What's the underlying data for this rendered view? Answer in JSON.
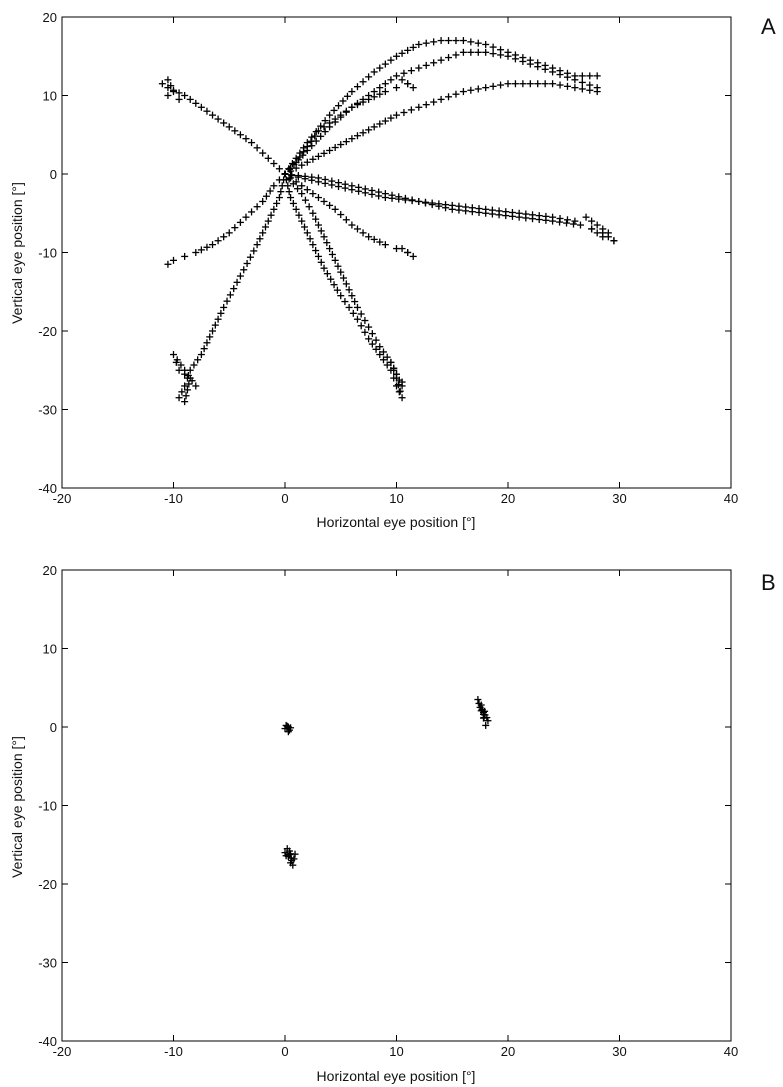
{
  "chart_data": [
    {
      "type": "scatter",
      "panel": "A",
      "xlabel": "Horizontal eye position [°]",
      "ylabel": "Vertical eye position [°]",
      "xlim": [
        -20,
        40
      ],
      "ylim": [
        -40,
        20
      ],
      "xticks": [
        -20,
        -10,
        0,
        10,
        20,
        30,
        40
      ],
      "yticks": [
        -40,
        -30,
        -20,
        -10,
        0,
        10,
        20
      ],
      "grid": false,
      "marker": "+",
      "series": [
        {
          "x": [
            0,
            -1.5,
            -3,
            -5,
            -7,
            -9,
            -10.5,
            -11,
            -10.5,
            -10,
            -9.5,
            -10.5
          ],
          "y": [
            0,
            2,
            4,
            6,
            8,
            10,
            11,
            11.5,
            12,
            10.5,
            9.5,
            10
          ]
        },
        {
          "x": [
            0,
            -1,
            -2,
            -3.5,
            -5,
            -6.5,
            -8,
            -9,
            -10,
            -10.5
          ],
          "y": [
            0,
            -1.5,
            -3.5,
            -5.5,
            -7.5,
            -9,
            -10,
            -10.5,
            -11,
            -11.5
          ]
        },
        {
          "x": [
            0,
            -0.5,
            -1.5,
            -2.5,
            -4,
            -5.5,
            -6.5,
            -7.5,
            -8.5,
            -9,
            -9.5,
            -9,
            -8.5,
            -9.5,
            -10,
            -8
          ],
          "y": [
            0,
            -3,
            -6,
            -9,
            -13,
            -17,
            -20,
            -23,
            -25,
            -27,
            -28.5,
            -29,
            -26,
            -25,
            -23,
            -27
          ]
        },
        {
          "x": [
            0,
            0.5,
            1.5,
            2.5,
            3.5,
            5,
            6.5,
            7.5,
            8.5,
            9.5,
            10,
            10.5,
            10,
            9.5,
            10.5
          ],
          "y": [
            0,
            -3,
            -6,
            -9,
            -12,
            -15.5,
            -18.5,
            -21,
            -23,
            -25,
            -27,
            -28.5,
            -26,
            -24,
            -27
          ]
        },
        {
          "x": [
            0,
            1.5,
            2.5,
            3.5,
            4.5,
            5.5,
            6.5,
            7.5,
            8.5,
            9.5,
            10,
            10.5
          ],
          "y": [
            0,
            -2.5,
            -5,
            -8,
            -11,
            -14,
            -17,
            -19.5,
            -22,
            -24,
            -25.5,
            -26.5
          ]
        },
        {
          "x": [
            0,
            1.5,
            3,
            4.5,
            6,
            7.5,
            9,
            10,
            11,
            11.5,
            10.5
          ],
          "y": [
            0,
            -1.5,
            -3,
            -4.5,
            -6.5,
            -8,
            -9,
            -9.5,
            -10,
            -10.5,
            -9.5
          ]
        },
        {
          "x": [
            0,
            3,
            6,
            9,
            12,
            15,
            18,
            21,
            24,
            26,
            27,
            28,
            29,
            29.5,
            28.5,
            27.5
          ],
          "y": [
            0,
            -0.5,
            -1.5,
            -2.5,
            -3.5,
            -4,
            -4.5,
            -5,
            -5.5,
            -6,
            -5.5,
            -6.5,
            -7.5,
            -8.5,
            -8,
            -7
          ]
        },
        {
          "x": [
            0,
            3,
            6,
            9,
            12,
            15,
            18,
            21,
            24,
            26.5,
            27.5,
            28.5,
            29,
            29.5
          ],
          "y": [
            0,
            -1,
            -2,
            -3,
            -3.5,
            -4.5,
            -5,
            -5.5,
            -6,
            -6.5,
            -7,
            -7.5,
            -8,
            -8.5
          ]
        },
        {
          "x": [
            0,
            1,
            2,
            3,
            4.5,
            6,
            7.5,
            9,
            10,
            11,
            11.5,
            10.5
          ],
          "y": [
            0,
            1.5,
            3.5,
            5.5,
            7,
            8.5,
            9.5,
            10.5,
            11,
            11.5,
            11,
            12
          ]
        },
        {
          "x": [
            0,
            2,
            4,
            6,
            8,
            10,
            12,
            14,
            16,
            18,
            20,
            22,
            24,
            26,
            28
          ],
          "y": [
            0,
            3,
            6,
            8.5,
            10.5,
            12.5,
            13.5,
            14.5,
            15.5,
            15.5,
            15,
            14,
            13,
            12,
            11
          ]
        },
        {
          "x": [
            0,
            2,
            4,
            6,
            8,
            10,
            12,
            14,
            16,
            18,
            20,
            22,
            24,
            26,
            28
          ],
          "y": [
            0,
            4,
            7.5,
            10.5,
            13,
            15,
            16.5,
            17,
            17,
            16.5,
            15.5,
            14.5,
            13.5,
            12.5,
            12.5
          ]
        },
        {
          "x": [
            0,
            2,
            4,
            6,
            8,
            10,
            12,
            14,
            16,
            18,
            20,
            22,
            24,
            26,
            28
          ],
          "y": [
            0,
            1.5,
            3,
            4.5,
            6,
            7.5,
            8.5,
            9.5,
            10.5,
            11,
            11.5,
            11.5,
            11.5,
            11,
            10.5
          ]
        }
      ]
    },
    {
      "type": "scatter",
      "panel": "B",
      "xlabel": "Horizontal eye position [°]",
      "ylabel": "Vertical eye position [°]",
      "xlim": [
        -20,
        40
      ],
      "ylim": [
        -40,
        20
      ],
      "xticks": [
        -20,
        -10,
        0,
        10,
        20,
        30,
        40
      ],
      "yticks": [
        -40,
        -30,
        -20,
        -10,
        0,
        10,
        20
      ],
      "grid": false,
      "marker": "+",
      "series": [
        {
          "x": [
            0,
            0.2,
            0.4,
            0.3,
            0.1,
            0.5,
            0.3
          ],
          "y": [
            -0.2,
            0.1,
            -0.4,
            -0.6,
            0.2,
            -0.1,
            0
          ]
        },
        {
          "x": [
            0,
            0.3,
            0.6,
            0.2,
            0.8,
            0.5,
            0.9,
            0.4,
            0.7,
            0.1
          ],
          "y": [
            -16,
            -16.5,
            -17,
            -15.5,
            -16.8,
            -17.3,
            -16.2,
            -15.8,
            -17.6,
            -16.4
          ]
        },
        {
          "x": [
            17.3,
            17.6,
            17.9,
            18.1,
            17.5,
            17.8,
            18.2,
            17.4,
            18,
            17.7
          ],
          "y": [
            3.5,
            2.8,
            2,
            1.2,
            2.5,
            1.6,
            0.8,
            3,
            0.2,
            2.2
          ]
        }
      ]
    }
  ],
  "panels": {
    "a": {
      "letter": "A",
      "xlabel": "Horizontal eye position [°]",
      "ylabel": "Vertical eye position [°]",
      "xticklabels": [
        "-20",
        "-10",
        "0",
        "10",
        "20",
        "30",
        "40"
      ],
      "yticklabels": [
        "-40",
        "-30",
        "-20",
        "-10",
        "0",
        "10",
        "20"
      ]
    },
    "b": {
      "letter": "B",
      "xlabel": "Horizontal eye position [°]",
      "ylabel": "Vertical eye position [°]",
      "xticklabels": [
        "-20",
        "-10",
        "0",
        "10",
        "20",
        "30",
        "40"
      ],
      "yticklabels": [
        "-40",
        "-30",
        "-20",
        "-10",
        "0",
        "10",
        "20"
      ]
    }
  }
}
